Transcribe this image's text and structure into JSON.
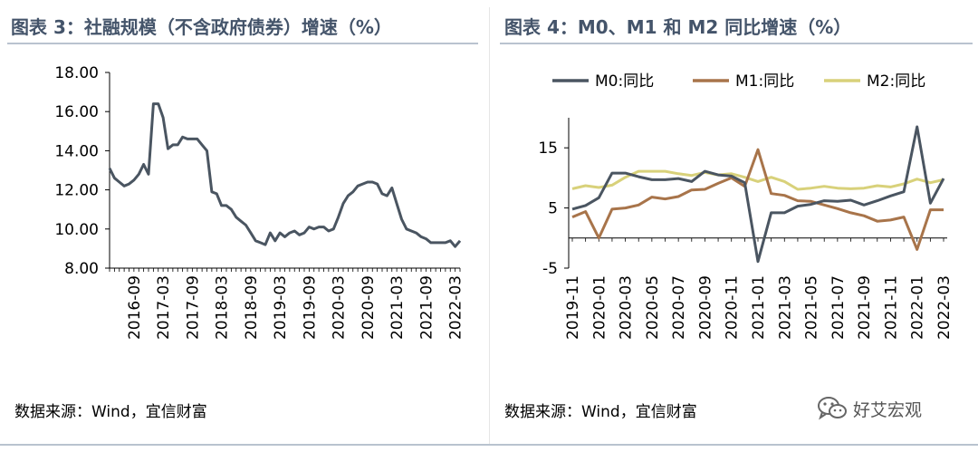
{
  "left_title": "图表 3：社融规模（不含政府债券）增速（%）",
  "right_title": "图表 4：M0、M1 和 M2 同比增速（%）",
  "left_source": "数据来源：Wind，宜信财富",
  "right_source": "数据来源：Wind，宜信财富",
  "watermark": "好艾宏观",
  "colors": {
    "title": "#44546a",
    "m0": "#4a5561",
    "m1": "#a8744a",
    "m2": "#d8d17a",
    "tsf": "#4a5561"
  },
  "chart_data": [
    {
      "type": "line",
      "title": "",
      "ylim": [
        8,
        18
      ],
      "y_ticks": [
        "8.00",
        "10.00",
        "12.00",
        "14.00",
        "16.00",
        "18.00"
      ],
      "x_start": "2016-04",
      "x_end": "2022-04",
      "x_tick_labels": [
        "2016-09",
        "2017-03",
        "2017-09",
        "2018-03",
        "2018-09",
        "2019-03",
        "2019-09",
        "2020-03",
        "2020-09",
        "2021-03",
        "2021-09",
        "2022-03"
      ],
      "series": [
        {
          "values": [
            13.1,
            12.6,
            12.4,
            12.2,
            12.3,
            12.5,
            12.8,
            13.3,
            12.8,
            16.4,
            16.4,
            15.7,
            14.1,
            14.3,
            14.3,
            14.7,
            14.6,
            14.6,
            14.6,
            14.3,
            14.0,
            11.9,
            11.8,
            11.2,
            11.2,
            11.0,
            10.6,
            10.4,
            10.2,
            9.8,
            9.4,
            9.3,
            9.2,
            9.8,
            9.4,
            9.8,
            9.6,
            9.8,
            9.9,
            9.7,
            9.8,
            10.1,
            10.0,
            10.1,
            10.1,
            9.9,
            10.0,
            10.6,
            11.3,
            11.7,
            11.9,
            12.2,
            12.3,
            12.4,
            12.4,
            12.3,
            11.8,
            11.7,
            12.1,
            11.3,
            10.5,
            10.0,
            9.9,
            9.8,
            9.6,
            9.5,
            9.3,
            9.3,
            9.3,
            9.3,
            9.4,
            9.1,
            9.4
          ]
        }
      ]
    },
    {
      "type": "line",
      "title": "",
      "ylim": [
        -5,
        20
      ],
      "y_ticks": [
        "-5",
        "5",
        "15"
      ],
      "categories": [
        "2019-11",
        "2019-12",
        "2020-01",
        "2020-02",
        "2020-03",
        "2020-04",
        "2020-05",
        "2020-06",
        "2020-07",
        "2020-08",
        "2020-09",
        "2020-10",
        "2020-11",
        "2020-12",
        "2021-01",
        "2021-02",
        "2021-03",
        "2021-04",
        "2021-05",
        "2021-06",
        "2021-07",
        "2021-08",
        "2021-09",
        "2021-10",
        "2021-11",
        "2021-12",
        "2022-01",
        "2022-02",
        "2022-03"
      ],
      "x_tick_labels": [
        "2019-11",
        "2020-01",
        "2020-03",
        "2020-05",
        "2020-07",
        "2020-09",
        "2020-11",
        "2021-01",
        "2021-03",
        "2021-05",
        "2021-07",
        "2021-09",
        "2021-11",
        "2022-01",
        "2022-03"
      ],
      "legend_position": "top",
      "series": [
        {
          "name": "M0:同比",
          "values": [
            4.8,
            5.4,
            6.7,
            10.8,
            10.8,
            10.2,
            9.7,
            9.7,
            9.9,
            9.4,
            11.1,
            10.5,
            10.3,
            9.2,
            -3.9,
            4.2,
            4.2,
            5.3,
            5.6,
            6.2,
            6.1,
            6.3,
            5.5,
            6.2,
            7.0,
            7.7,
            18.5,
            5.8,
            9.9
          ]
        },
        {
          "name": "M1:同比",
          "values": [
            3.5,
            4.4,
            0.0,
            4.8,
            5.0,
            5.5,
            6.8,
            6.5,
            6.9,
            8.0,
            8.1,
            9.1,
            10.0,
            8.6,
            14.7,
            7.4,
            7.1,
            6.2,
            6.1,
            5.5,
            4.9,
            4.2,
            3.7,
            2.8,
            3.0,
            3.5,
            -1.9,
            4.7,
            4.7
          ]
        },
        {
          "name": "M2:同比",
          "values": [
            8.2,
            8.7,
            8.4,
            8.8,
            10.1,
            11.1,
            11.1,
            11.1,
            10.7,
            10.4,
            10.9,
            10.5,
            10.7,
            10.1,
            9.4,
            10.1,
            9.4,
            8.1,
            8.3,
            8.6,
            8.3,
            8.2,
            8.3,
            8.7,
            8.5,
            9.0,
            9.8,
            9.2,
            9.7
          ]
        }
      ]
    }
  ]
}
